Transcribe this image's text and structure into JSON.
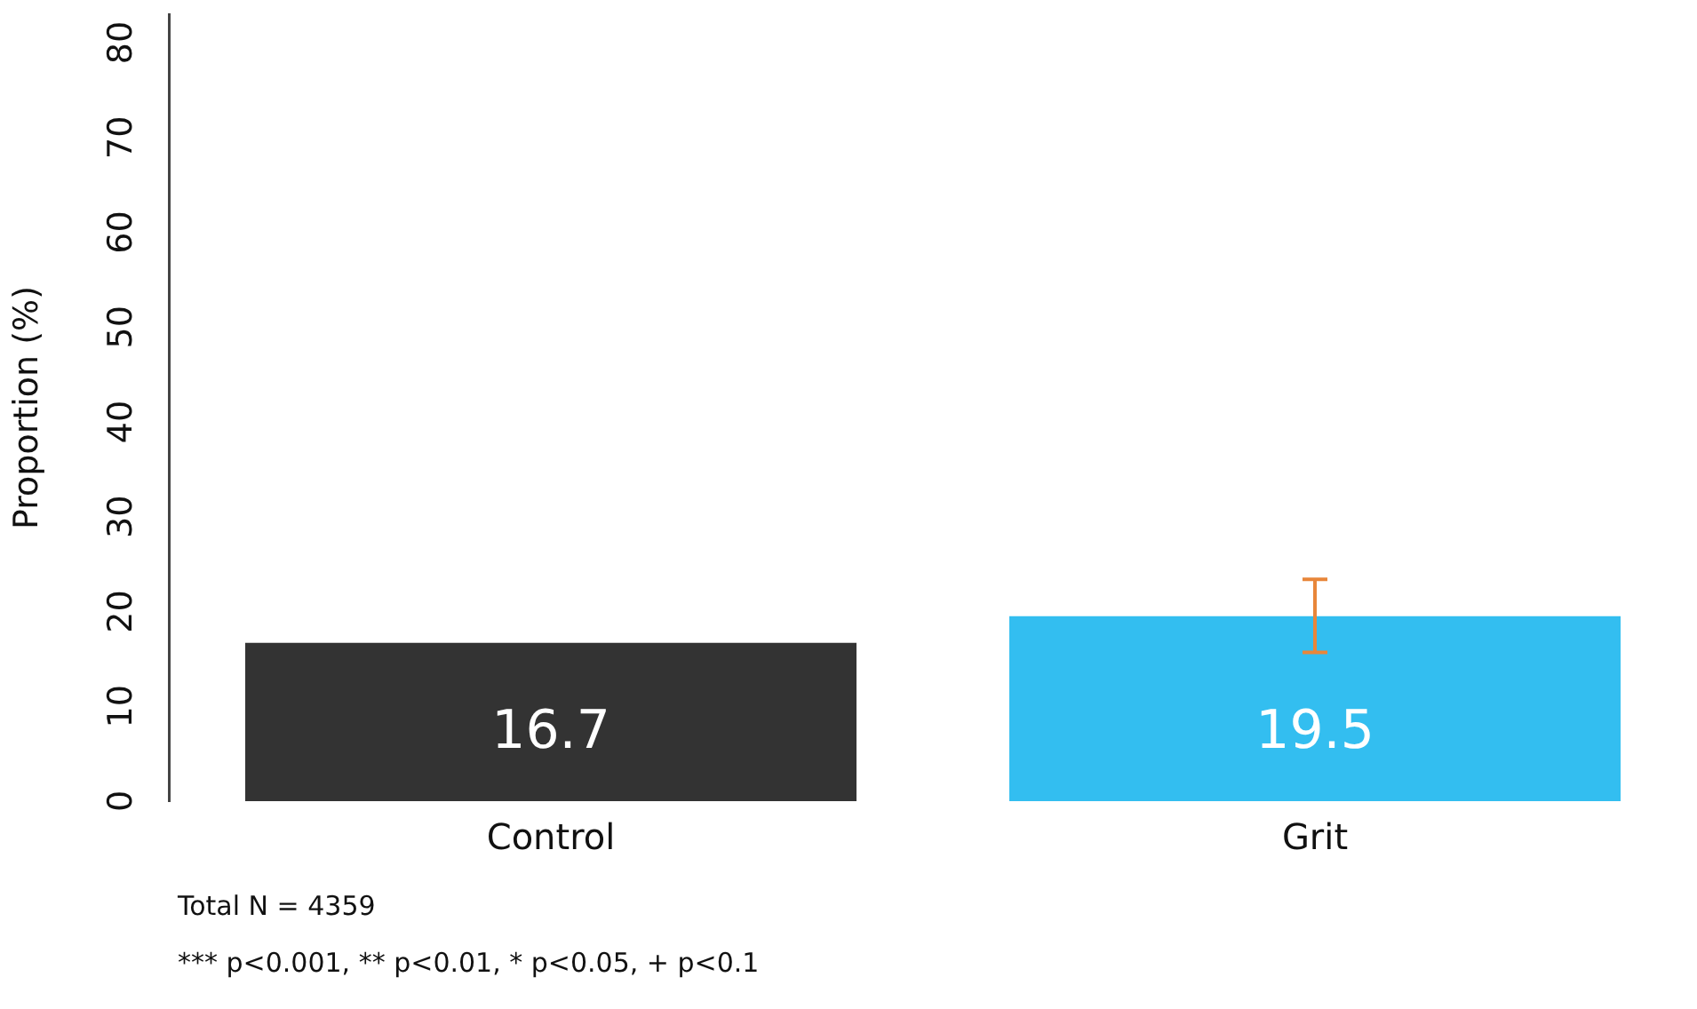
{
  "chart_data": {
    "type": "bar",
    "ylabel": "Proportion (%)",
    "categories": [
      "Control",
      "Grit"
    ],
    "values": [
      16.7,
      19.5
    ],
    "colors": [
      "#333333",
      "#33bef0"
    ],
    "errors": [
      null,
      [
        15.7,
        23.4
      ]
    ],
    "ylim": [
      0,
      83
    ],
    "yticks": [
      0,
      10,
      20,
      30,
      40,
      50,
      60,
      70,
      80
    ],
    "grid": false,
    "legend": false,
    "data_labels": true,
    "annotations": [
      "Total N = 4359",
      "*** p<0.001, ** p<0.01, * p<0.05, + p<0.1"
    ]
  }
}
